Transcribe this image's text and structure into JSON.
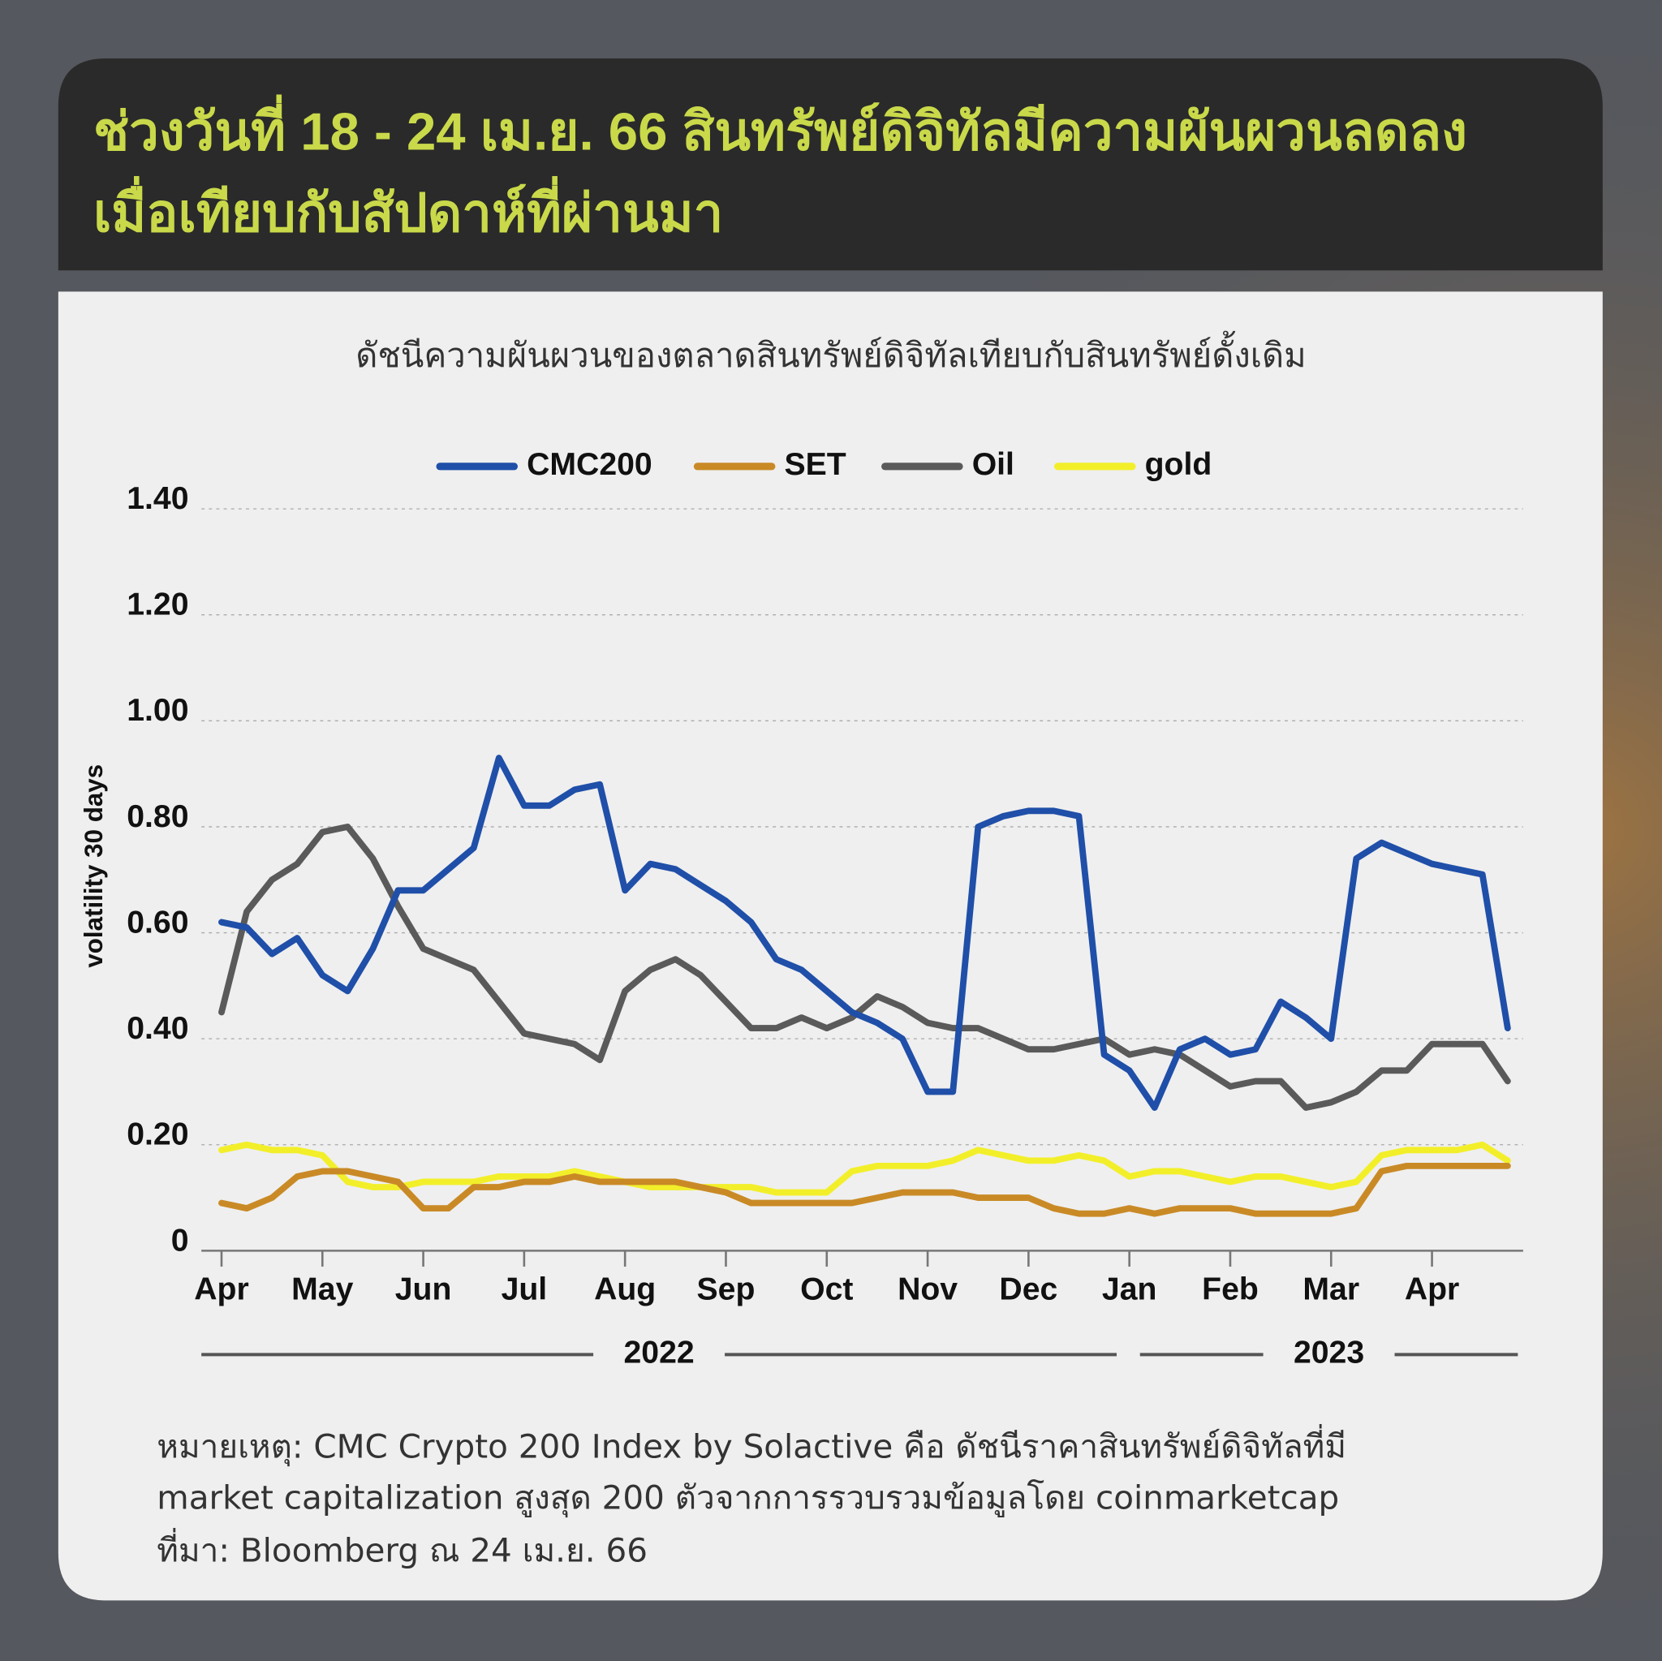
{
  "headline": [
    "ช่วงวันที่ 18 - 24 เม.ย. 66 สินทรัพย์ดิจิทัลมีความผันผวนลดลง",
    "เมื่อเทียบกับสัปดาห์ที่ผ่านมา"
  ],
  "chart_data": {
    "type": "line",
    "title": "ดัชนีความผันผวนของตลาดสินทรัพย์ดิจิทัลเทียบกับสินทรัพย์ดั้งเดิม",
    "y_label": "volatility 30 days",
    "categories": [
      "Apr",
      null,
      null,
      null,
      "May",
      null,
      null,
      null,
      "Jun",
      null,
      null,
      null,
      "Jul",
      null,
      null,
      null,
      "Aug",
      null,
      null,
      null,
      "Sep",
      null,
      null,
      null,
      "Oct",
      null,
      null,
      null,
      "Nov",
      null,
      null,
      null,
      "Dec",
      null,
      null,
      null,
      "Jan",
      null,
      null,
      null,
      "Feb",
      null,
      null,
      null,
      "Mar",
      null,
      null,
      null,
      "Apr",
      null,
      null,
      null
    ],
    "years": [
      "2022",
      "2023"
    ],
    "series": [
      {
        "name": "CMC200",
        "color": "#1f4fa8",
        "values": [
          0.62,
          0.61,
          0.56,
          0.59,
          0.52,
          0.49,
          0.57,
          0.68,
          0.68,
          0.72,
          0.76,
          0.93,
          0.84,
          0.84,
          0.87,
          0.88,
          0.68,
          0.73,
          0.72,
          0.69,
          0.66,
          0.62,
          0.55,
          0.53,
          0.49,
          0.45,
          0.43,
          0.4,
          0.3,
          0.3,
          0.8,
          0.82,
          0.83,
          0.83,
          0.82,
          0.37,
          0.34,
          0.27,
          0.38,
          0.4,
          0.37,
          0.38,
          0.47,
          0.44,
          0.4,
          0.74,
          0.77,
          0.75,
          0.73,
          0.72,
          0.71,
          0.42
        ]
      },
      {
        "name": "SET",
        "color": "#c98a26",
        "values": [
          0.09,
          0.08,
          0.1,
          0.14,
          0.15,
          0.15,
          0.14,
          0.13,
          0.08,
          0.08,
          0.12,
          0.12,
          0.13,
          0.13,
          0.14,
          0.13,
          0.13,
          0.13,
          0.13,
          0.12,
          0.11,
          0.09,
          0.09,
          0.09,
          0.09,
          0.09,
          0.1,
          0.11,
          0.11,
          0.11,
          0.1,
          0.1,
          0.1,
          0.08,
          0.07,
          0.07,
          0.08,
          0.07,
          0.08,
          0.08,
          0.08,
          0.07,
          0.07,
          0.07,
          0.07,
          0.08,
          0.15,
          0.16,
          0.16,
          0.16,
          0.16,
          0.16
        ]
      },
      {
        "name": "Oil",
        "color": "#5a5a5a",
        "values": [
          0.45,
          0.64,
          0.7,
          0.73,
          0.79,
          0.8,
          0.74,
          0.65,
          0.57,
          0.55,
          0.53,
          0.47,
          0.41,
          0.4,
          0.39,
          0.36,
          0.49,
          0.53,
          0.55,
          0.52,
          0.47,
          0.42,
          0.42,
          0.44,
          0.42,
          0.44,
          0.48,
          0.46,
          0.43,
          0.42,
          0.42,
          0.4,
          0.38,
          0.38,
          0.39,
          0.4,
          0.37,
          0.38,
          0.37,
          0.34,
          0.31,
          0.32,
          0.32,
          0.27,
          0.28,
          0.3,
          0.34,
          0.34,
          0.39,
          0.39,
          0.39,
          0.32
        ]
      },
      {
        "name": "gold",
        "color": "#f2ef2a",
        "values": [
          0.19,
          0.2,
          0.19,
          0.19,
          0.18,
          0.13,
          0.12,
          0.12,
          0.13,
          0.13,
          0.13,
          0.14,
          0.14,
          0.14,
          0.15,
          0.14,
          0.13,
          0.12,
          0.12,
          0.12,
          0.12,
          0.12,
          0.11,
          0.11,
          0.11,
          0.15,
          0.16,
          0.16,
          0.16,
          0.17,
          0.19,
          0.18,
          0.17,
          0.17,
          0.18,
          0.17,
          0.14,
          0.15,
          0.15,
          0.14,
          0.13,
          0.14,
          0.14,
          0.13,
          0.12,
          0.13,
          0.18,
          0.19,
          0.19,
          0.19,
          0.2,
          0.17
        ]
      }
    ],
    "ylim": [
      0,
      1.4
    ],
    "yticks": [
      0,
      {
        "value": 0.2,
        "label": "0.20"
      },
      {
        "value": 0.4,
        "label": "0.40"
      },
      {
        "value": 0.6,
        "label": "0.60"
      },
      {
        "value": 0.8,
        "label": "0.80"
      },
      {
        "value": 1.0,
        "label": "1.00"
      },
      {
        "value": 1.2,
        "label": "1.20"
      },
      {
        "value": 1.4,
        "label": "1.40"
      }
    ],
    "grid": true,
    "legend": "top"
  },
  "notes": [
    "หมายเหตุ: CMC Crypto 200 Index by Solactive คือ ดัชนีราคาสินทรัพย์ดิจิทัลที่มี",
    "market capitalization สูงสุด 200 ตัวจากการรวบรวมข้อมูลโดย coinmarketcap",
    "ที่มา: Bloomberg ณ 24 เม.ย. 66"
  ]
}
